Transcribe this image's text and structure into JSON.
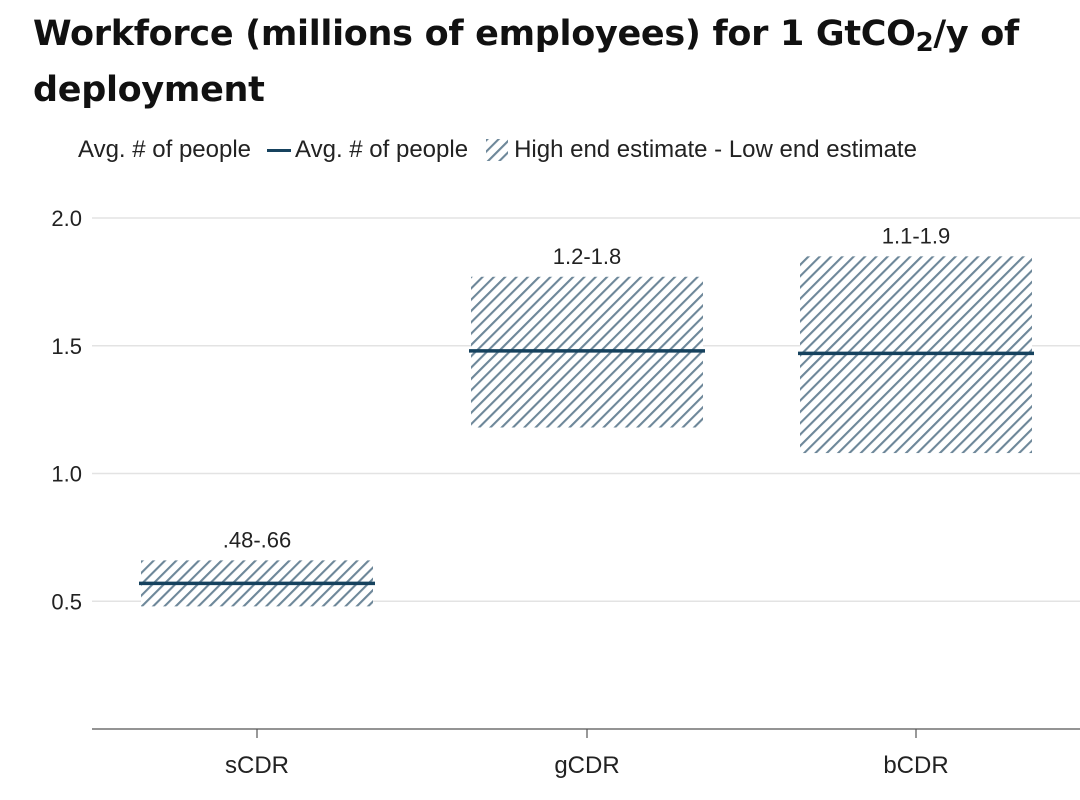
{
  "colors": {
    "avg_line": "#16425e",
    "hatch": "#6d8799",
    "grid": "#e3e3e3",
    "axis": "#555555",
    "text": "#222222"
  },
  "chart_data": {
    "type": "bar",
    "title_parts": [
      "Workforce (millions of employees) for 1 GtCO",
      "2",
      "/y of deployment"
    ],
    "categories": [
      "sCDR",
      "gCDR",
      "bCDR"
    ],
    "low": [
      0.48,
      1.18,
      1.08
    ],
    "high": [
      0.66,
      1.77,
      1.85
    ],
    "avg": [
      0.57,
      1.48,
      1.47
    ],
    "range_labels": [
      ".48-.66",
      "1.2-1.8",
      "1.1-1.9"
    ],
    "legend": [
      "Avg. # of people",
      "Avg. # of people",
      "High end estimate - Low end estimate"
    ],
    "ylim": [
      0,
      2.0
    ],
    "yticks": [
      0.5,
      1.0,
      1.5,
      2.0
    ],
    "ytick_labels": [
      "0.5",
      "1.0",
      "1.5",
      "2.0"
    ],
    "grid": true,
    "legend_position": "top-left",
    "xlabel": "",
    "ylabel": ""
  }
}
